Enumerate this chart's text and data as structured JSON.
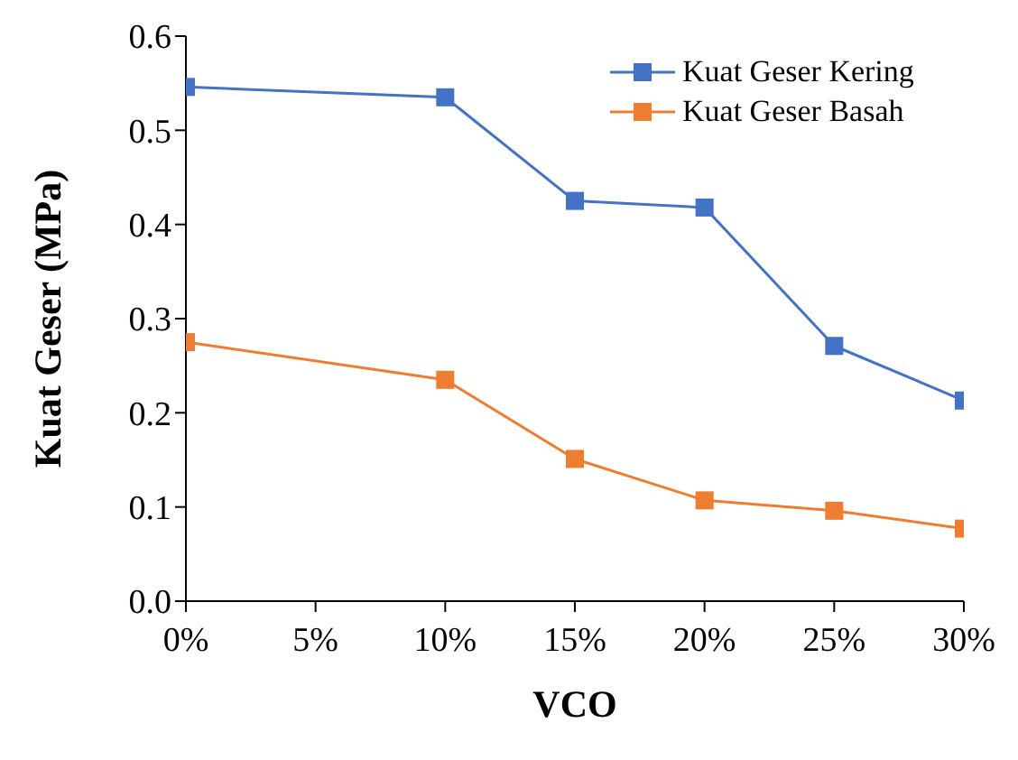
{
  "chart_data": {
    "type": "line",
    "xlabel": "VCO",
    "ylabel": "Kuat Geser (MPa)",
    "x": [
      0,
      10,
      15,
      20,
      25,
      30
    ],
    "series": [
      {
        "name": "Kuat Geser Kering",
        "color": "#4472c4",
        "values": [
          0.546,
          0.535,
          0.425,
          0.418,
          0.271,
          0.213
        ]
      },
      {
        "name": "Kuat Geser Basah",
        "color": "#ed7d31",
        "values": [
          0.275,
          0.235,
          0.151,
          0.107,
          0.096,
          0.077
        ]
      }
    ],
    "xlim": [
      0,
      30
    ],
    "xticks": [
      {
        "value": 0,
        "label": "0%"
      },
      {
        "value": 5,
        "label": "5%"
      },
      {
        "value": 10,
        "label": "10%"
      },
      {
        "value": 15,
        "label": "15%"
      },
      {
        "value": 20,
        "label": "20%"
      },
      {
        "value": 25,
        "label": "25%"
      },
      {
        "value": 30,
        "label": "30%"
      }
    ],
    "ylim": [
      0,
      0.6
    ],
    "yticks": [
      {
        "value": 0,
        "label": "0.0"
      },
      0.1,
      0.2,
      0.3,
      0.4,
      0.5,
      0.6
    ],
    "grid": false,
    "legend": "top right",
    "marker": "square",
    "line_style": "solid"
  }
}
